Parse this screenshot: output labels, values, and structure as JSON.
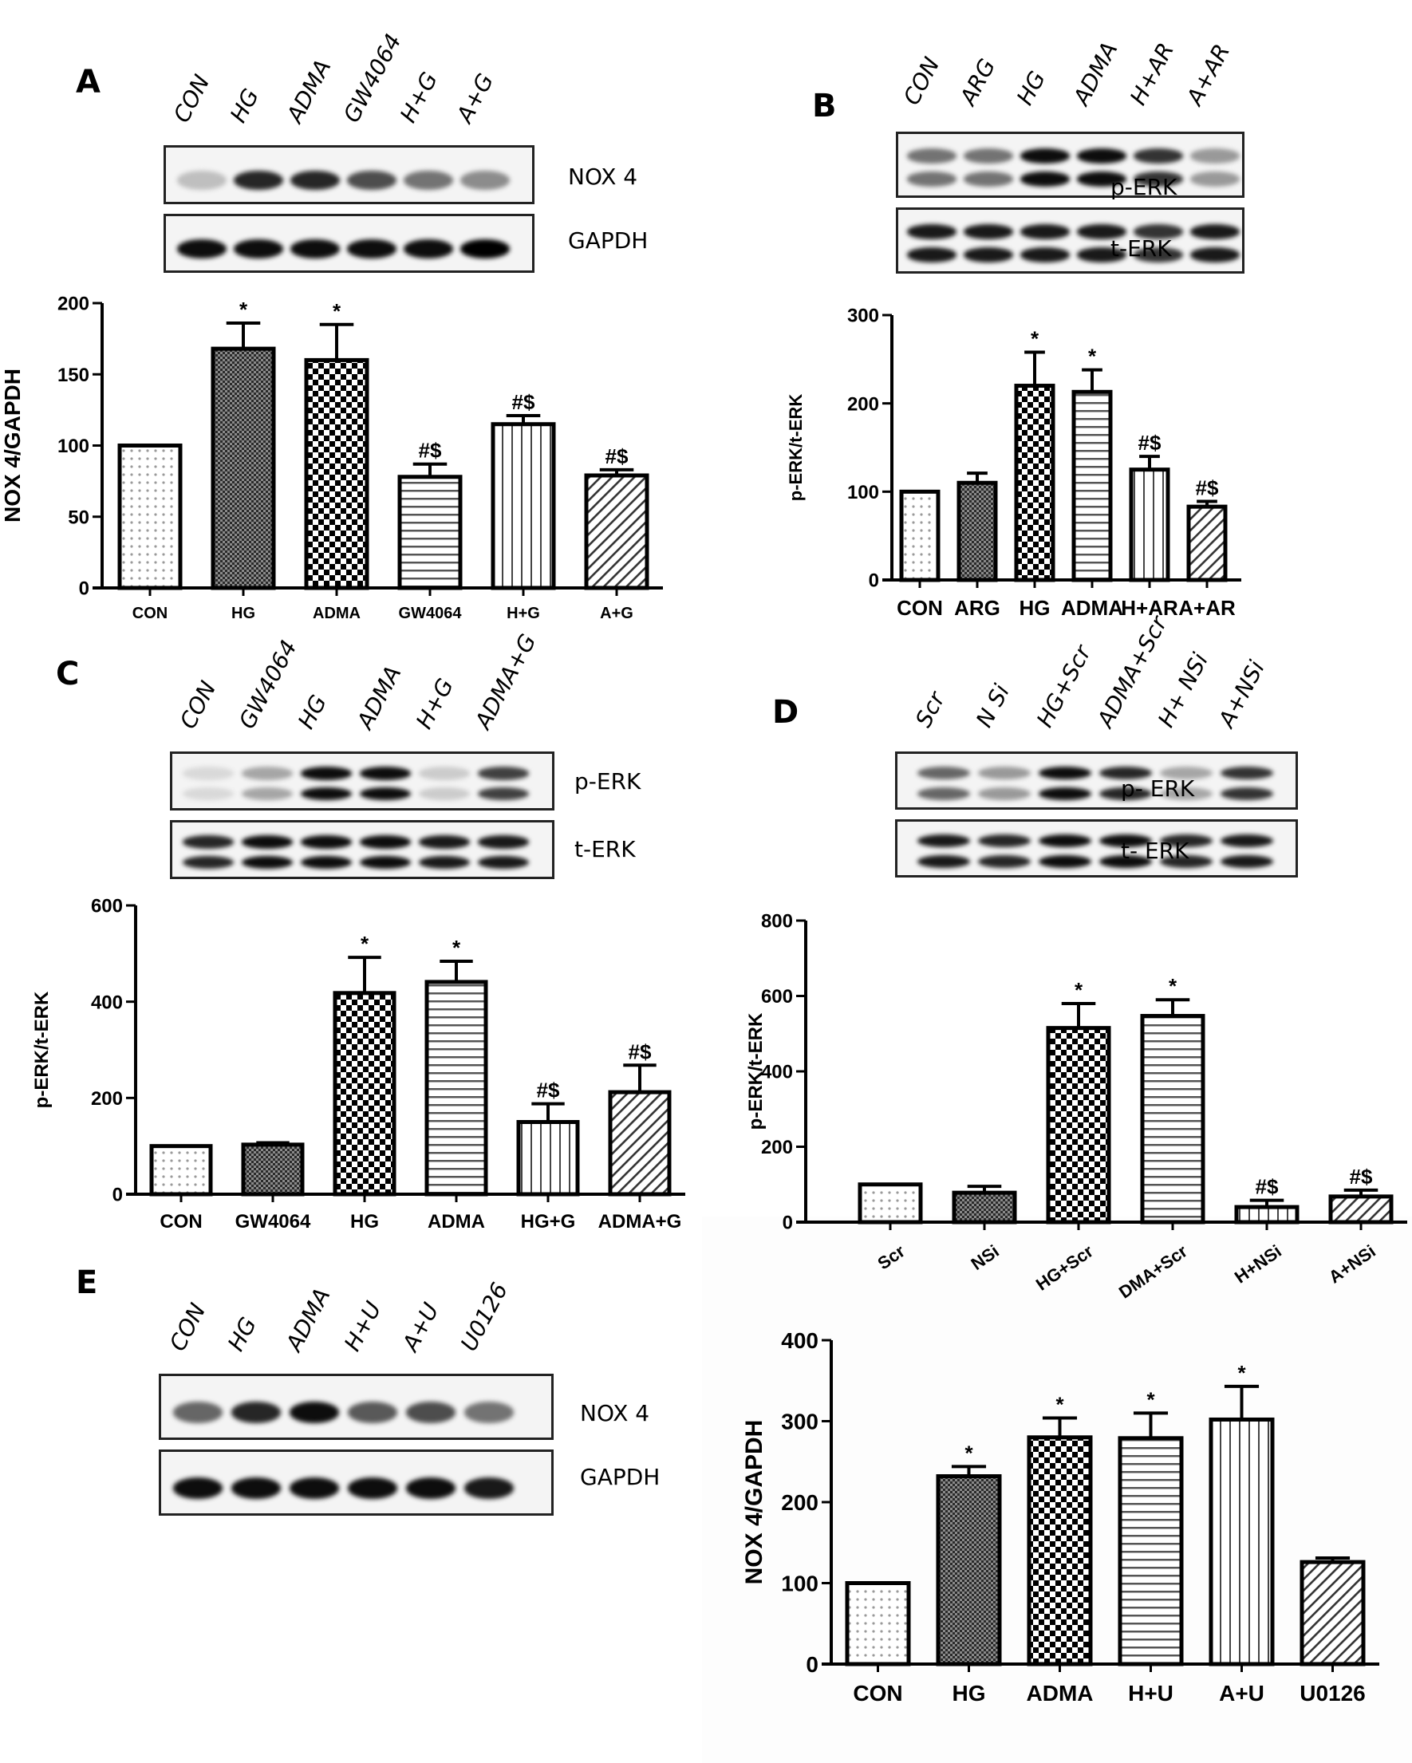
{
  "panels": {
    "A": {
      "letter": "A",
      "lanes": [
        "CON",
        "HG",
        "ADMA",
        "GW4064",
        "H+G",
        "A+G"
      ],
      "blots": [
        {
          "label": "NOX 4",
          "intensity": [
            0.25,
            0.85,
            0.85,
            0.7,
            0.55,
            0.45
          ]
        },
        {
          "label": "GAPDH",
          "intensity": [
            0.95,
            0.95,
            0.95,
            0.95,
            0.95,
            1.0
          ]
        }
      ]
    },
    "B": {
      "letter": "B",
      "lanes": [
        "CON",
        "ARG",
        "HG",
        "ADMA",
        "H+AR",
        "A+AR"
      ],
      "blots": [
        {
          "label": "p-ERK",
          "intensity": [
            0.55,
            0.55,
            0.95,
            0.95,
            0.8,
            0.4
          ]
        },
        {
          "label": "t-ERK",
          "intensity": [
            0.9,
            0.9,
            0.9,
            0.9,
            0.8,
            0.9
          ]
        }
      ]
    },
    "C": {
      "letter": "C",
      "lanes": [
        "CON",
        "GW4064",
        "HG",
        "ADMA",
        "H+G",
        "ADMA+G"
      ],
      "blots": [
        {
          "label": "p-ERK",
          "intensity": [
            0.15,
            0.35,
            0.95,
            0.95,
            0.2,
            0.75
          ]
        },
        {
          "label": "t-ERK",
          "intensity": [
            0.85,
            0.95,
            0.95,
            0.95,
            0.9,
            0.9
          ]
        }
      ]
    },
    "D": {
      "letter": "D",
      "lanes": [
        "Scr",
        "N Si",
        "HG+Scr",
        "ADMA+Scr",
        "H+ NSi",
        "A+NSi"
      ],
      "blots": [
        {
          "label": "p- ERK",
          "intensity": [
            0.6,
            0.4,
            0.95,
            0.85,
            0.35,
            0.8
          ]
        },
        {
          "label": "t- ERK",
          "intensity": [
            0.9,
            0.85,
            0.95,
            0.95,
            0.85,
            0.9
          ]
        }
      ]
    },
    "E": {
      "letter": "E",
      "lanes": [
        "CON",
        "HG",
        "ADMA",
        "H+U",
        "A+U",
        "U0126"
      ],
      "blots": [
        {
          "label": "NOX 4",
          "intensity": [
            0.6,
            0.85,
            0.95,
            0.65,
            0.7,
            0.55
          ]
        },
        {
          "label": "GAPDH",
          "intensity": [
            0.95,
            0.95,
            0.95,
            0.95,
            0.95,
            0.9
          ]
        }
      ]
    }
  },
  "chart_data": [
    {
      "panel": "A",
      "type": "bar",
      "title": "",
      "xlabel": "",
      "ylabel": "NOX 4/GAPDH",
      "categories": [
        "CON",
        "HG",
        "ADMA",
        "GW4064",
        "H+G",
        "A+G"
      ],
      "values": [
        100,
        168,
        160,
        78,
        115,
        79
      ],
      "error_upper": [
        100,
        186,
        185,
        87,
        121,
        83
      ],
      "annotations": [
        "",
        "*",
        "*",
        "#$",
        "#$",
        "#$"
      ],
      "patterns": [
        "dots",
        "fine-check",
        "check",
        "hlines",
        "vlines",
        "diag"
      ],
      "ylim": [
        0,
        200
      ],
      "yticks": [
        0,
        50,
        100,
        150,
        200
      ],
      "grid": false,
      "legend": null
    },
    {
      "panel": "B",
      "type": "bar",
      "title": "",
      "xlabel": "",
      "ylabel": "p-ERK/t-ERK",
      "categories": [
        "CON",
        "ARG",
        "HG",
        "ADMA",
        "H+AR",
        "A+AR"
      ],
      "values": [
        100,
        110,
        220,
        213,
        125,
        83
      ],
      "error_upper": [
        100,
        121,
        258,
        238,
        140,
        89
      ],
      "annotations": [
        "",
        "",
        "*",
        "*",
        "#$",
        "#$"
      ],
      "patterns": [
        "dots",
        "fine-check",
        "check",
        "hlines",
        "vlines",
        "diag"
      ],
      "ylim": [
        0,
        300
      ],
      "yticks": [
        0,
        100,
        200,
        300
      ],
      "grid": false,
      "legend": null
    },
    {
      "panel": "C",
      "type": "bar",
      "title": "",
      "xlabel": "",
      "ylabel": "p-ERK/t-ERK",
      "categories": [
        "CON",
        "GW4064",
        "HG",
        "ADMA",
        "HG+G",
        "ADMA+G"
      ],
      "values": [
        100,
        103,
        418,
        441,
        150,
        212
      ],
      "error_upper": [
        100,
        107,
        492,
        484,
        188,
        268
      ],
      "annotations": [
        "",
        "",
        "*",
        "*",
        "#$",
        "#$"
      ],
      "patterns": [
        "dots",
        "fine-check",
        "check",
        "hlines",
        "vlines",
        "diag"
      ],
      "ylim": [
        0,
        600
      ],
      "yticks": [
        0,
        200,
        400,
        600
      ],
      "grid": false,
      "legend": null
    },
    {
      "panel": "D",
      "type": "bar",
      "title": "",
      "xlabel": "",
      "ylabel": "p-ERK/t-ERK",
      "categories": [
        "Scr",
        "NSi",
        "HG+Scr",
        "DMA+Scr",
        "H+NSi",
        "A+NSi"
      ],
      "values": [
        100,
        78,
        515,
        547,
        40,
        68
      ],
      "error_upper": [
        100,
        95,
        580,
        590,
        58,
        85
      ],
      "annotations": [
        "",
        "",
        "*",
        "*",
        "#$",
        "#$"
      ],
      "patterns": [
        "dots",
        "fine-check",
        "check",
        "hlines",
        "vlines",
        "diag"
      ],
      "ylim": [
        0,
        800
      ],
      "yticks": [
        0,
        200,
        400,
        600,
        800
      ],
      "grid": false,
      "legend": null
    },
    {
      "panel": "E",
      "type": "bar",
      "title": "",
      "xlabel": "",
      "ylabel": "NOX 4/GAPDH",
      "categories": [
        "CON",
        "HG",
        "ADMA",
        "H+U",
        "A+U",
        "U0126"
      ],
      "values": [
        100,
        232,
        280,
        279,
        302,
        126
      ],
      "error_upper": [
        100,
        244,
        304,
        310,
        343,
        131
      ],
      "annotations": [
        "",
        "*",
        "*",
        "*",
        "*",
        ""
      ],
      "patterns": [
        "dots",
        "fine-check",
        "check",
        "hlines",
        "vlines",
        "diag"
      ],
      "ylim": [
        0,
        400
      ],
      "yticks": [
        0,
        100,
        200,
        300,
        400
      ],
      "grid": false,
      "legend": null
    }
  ]
}
